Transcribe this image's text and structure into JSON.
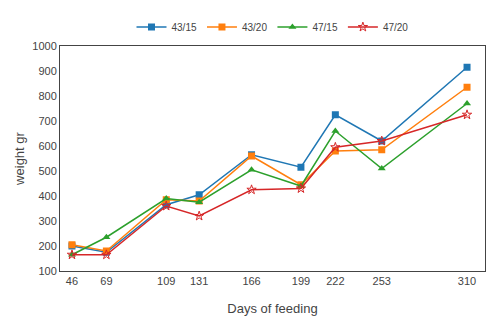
{
  "chart_data": {
    "type": "line",
    "x": [
      46,
      69,
      109,
      131,
      166,
      199,
      222,
      253,
      310
    ],
    "series": [
      {
        "name": "43/15",
        "marker": "square",
        "values": [
          200,
          175,
          365,
          405,
          565,
          515,
          725,
          620,
          915
        ]
      },
      {
        "name": "43/20",
        "marker": "square",
        "values": [
          205,
          180,
          385,
          380,
          560,
          445,
          580,
          585,
          835
        ]
      },
      {
        "name": "47/15",
        "marker": "triangle-up",
        "values": [
          165,
          235,
          390,
          375,
          505,
          440,
          660,
          510,
          770
        ]
      },
      {
        "name": "47/20",
        "marker": "star-open",
        "values": [
          165,
          165,
          360,
          320,
          425,
          430,
          595,
          620,
          725
        ]
      }
    ],
    "xlabel": "Days of feeding",
    "ylabel": "weight gr",
    "xlim": [
      38,
      322
    ],
    "xticks": [
      46,
      69,
      109,
      131,
      166,
      199,
      222,
      253,
      310
    ],
    "ylim": [
      100,
      1000
    ],
    "yticks": [
      100,
      200,
      300,
      400,
      500,
      600,
      700,
      800,
      900,
      1000
    ],
    "grid": false,
    "legend": "upper center"
  }
}
